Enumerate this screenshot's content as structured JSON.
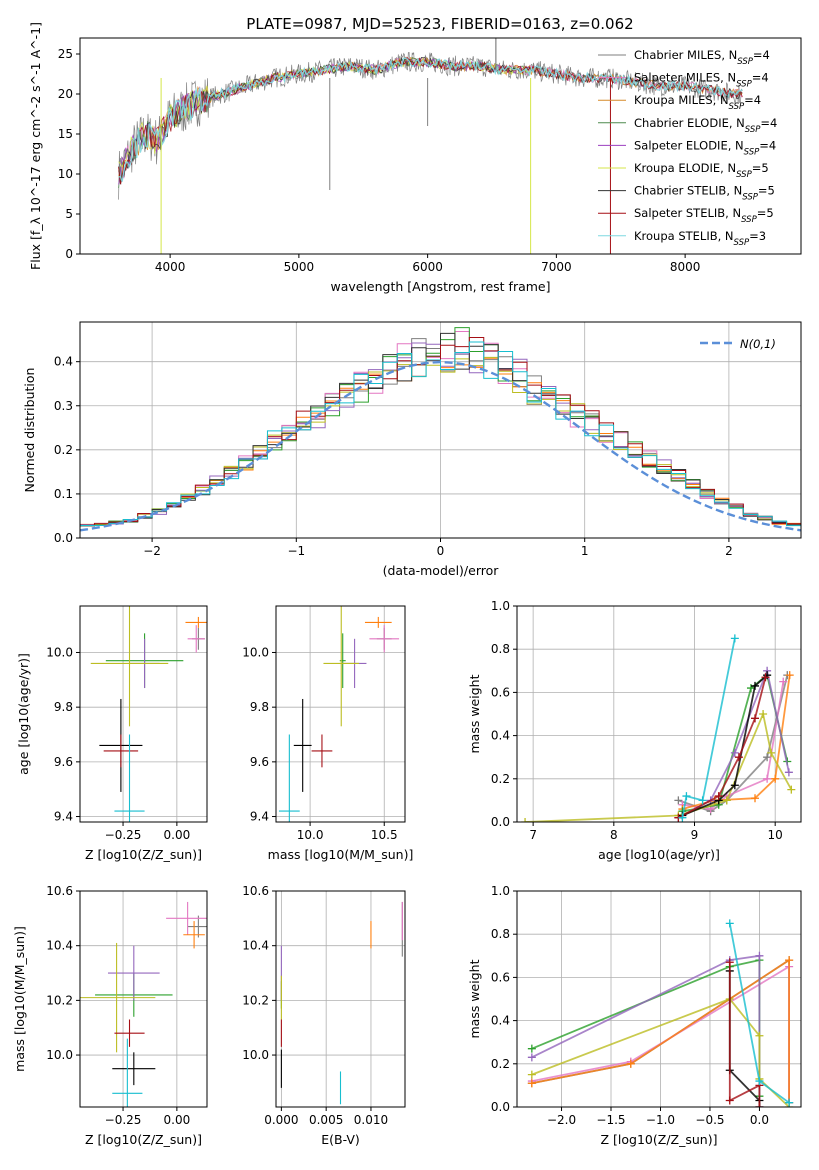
{
  "figure_title": "PLATE=0987, MJD=52523, FIBERID=0163, z=0.062",
  "colors": {
    "Chabrier MILES": "#7f7f7f",
    "Salpeter MILES": "#e377c2",
    "Kroupa MILES": "#ff7f0e",
    "Chabrier ELODIE": "#2ca02c",
    "Salpeter ELODIE": "#9467bd",
    "Kroupa ELODIE": "#bcbd22",
    "Chabrier STELIB": "#000000",
    "Salpeter STELIB": "#a50f15",
    "Kroupa STELIB": "#17becf",
    "normal_curve": "#5b8fd8"
  },
  "legend_spectrum": [
    {
      "label": "Chabrier MILES, N_SSP=4",
      "color": "#7f7f7f"
    },
    {
      "label": "Salpeter MILES, N_SSP=4",
      "color": "#e377c2"
    },
    {
      "label": "Kroupa MILES, N_SSP=4",
      "color": "#d68a2a"
    },
    {
      "label": "Chabrier ELODIE, N_SSP=4",
      "color": "#4e8a4e"
    },
    {
      "label": "Salpeter ELODIE, N_SSP=4",
      "color": "#9b3fbf"
    },
    {
      "label": "Kroupa ELODIE, N_SSP=5",
      "color": "#d4e64a"
    },
    {
      "label": "Chabrier STELIB, N_SSP=5",
      "color": "#333333"
    },
    {
      "label": "Salpeter STELIB, N_SSP=5",
      "color": "#a50f15"
    },
    {
      "label": "Kroupa STELIB, N_SSP=3",
      "color": "#7fd8e0"
    }
  ],
  "chart_data": [
    {
      "id": "spectrum",
      "type": "line",
      "xlabel": "wavelength [Angstrom, rest frame]",
      "ylabel": "Flux [f_λ 10^-17 erg cm^-2 s^-1 A^-1]",
      "xlim": [
        3300,
        8900
      ],
      "ylim": [
        0,
        27
      ],
      "xticks": [
        4000,
        5000,
        6000,
        7000,
        8000
      ],
      "yticks": [
        0,
        5,
        10,
        15,
        20,
        25
      ],
      "x": [
        3600,
        3700,
        3800,
        3900,
        4000,
        4100,
        4200,
        4400,
        4600,
        4800,
        5000,
        5200,
        5400,
        5600,
        5800,
        6000,
        6200,
        6400,
        6600,
        6800,
        7000,
        7200,
        7400,
        7600,
        7800,
        8000,
        8200,
        8400
      ],
      "series": [
        {
          "name": "data",
          "values": [
            10,
            13,
            15,
            14,
            17,
            18,
            19,
            20,
            21,
            22,
            22.5,
            23,
            23.5,
            23,
            24,
            24,
            23.5,
            23.5,
            23,
            23,
            22.5,
            22,
            22,
            21.5,
            21,
            21,
            20.5,
            20
          ]
        },
        {
          "name": "model",
          "values": [
            11,
            13.5,
            15.5,
            15,
            17.5,
            18.5,
            19.5,
            20.5,
            21.5,
            22,
            22.5,
            23,
            23.5,
            23.5,
            23.5,
            23.5,
            23.5,
            23,
            23,
            22.5,
            22.5,
            22,
            22,
            21.5,
            21,
            21,
            20.5,
            20
          ]
        }
      ]
    },
    {
      "id": "residual_hist",
      "type": "histogram",
      "xlabel": "(data-model)/error",
      "ylabel": "Normed distribution",
      "xlim": [
        -2.5,
        2.5
      ],
      "ylim": [
        0,
        0.49
      ],
      "xticks": [
        -2,
        -1,
        0,
        1,
        2
      ],
      "yticks": [
        0.0,
        0.1,
        0.2,
        0.3,
        0.4
      ],
      "legend": "N(0,1)",
      "bin_edges": [
        -2.5,
        -2.4,
        -2.3,
        -2.2,
        -2.1,
        -2.0,
        -1.9,
        -1.8,
        -1.7,
        -1.6,
        -1.5,
        -1.4,
        -1.3,
        -1.2,
        -1.1,
        -1.0,
        -0.9,
        -0.8,
        -0.7,
        -0.6,
        -0.5,
        -0.4,
        -0.3,
        -0.2,
        -0.1,
        0.0,
        0.1,
        0.2,
        0.3,
        0.4,
        0.5,
        0.6,
        0.7,
        0.8,
        0.9,
        1.0,
        1.1,
        1.2,
        1.3,
        1.4,
        1.5,
        1.6,
        1.7,
        1.8,
        1.9,
        2.0,
        2.1,
        2.2,
        2.3,
        2.4,
        2.5
      ],
      "density": [
        0.03,
        0.03,
        0.035,
        0.04,
        0.05,
        0.06,
        0.075,
        0.09,
        0.11,
        0.13,
        0.15,
        0.17,
        0.19,
        0.22,
        0.24,
        0.26,
        0.28,
        0.3,
        0.32,
        0.34,
        0.36,
        0.38,
        0.4,
        0.41,
        0.4,
        0.42,
        0.43,
        0.41,
        0.4,
        0.39,
        0.37,
        0.34,
        0.32,
        0.3,
        0.28,
        0.26,
        0.24,
        0.22,
        0.2,
        0.18,
        0.16,
        0.14,
        0.12,
        0.1,
        0.085,
        0.07,
        0.055,
        0.045,
        0.035,
        0.03
      ]
    },
    {
      "id": "age_vs_Z",
      "type": "errorbar",
      "xlabel": "Z [log10(Z/Z_sun)]",
      "ylabel": "age [log10(age/yr)]",
      "xlim": [
        -0.45,
        0.14
      ],
      "ylim": [
        9.38,
        10.17
      ],
      "xticks": [
        -0.25,
        0.0
      ],
      "yticks": [
        9.4,
        9.6,
        9.8,
        10.0
      ],
      "points": [
        {
          "model": "Chabrier MILES",
          "x": 0.1,
          "y": 10.05,
          "xerr": 0.03,
          "yerr": 0.04
        },
        {
          "model": "Salpeter MILES",
          "x": 0.09,
          "y": 10.05,
          "xerr": 0.04,
          "yerr": 0.05
        },
        {
          "model": "Kroupa MILES",
          "x": 0.1,
          "y": 10.11,
          "xerr": 0.06,
          "yerr": 0.02
        },
        {
          "model": "Chabrier ELODIE",
          "x": -0.15,
          "y": 9.97,
          "xerr": 0.18,
          "yerr": 0.1
        },
        {
          "model": "Salpeter ELODIE",
          "x": -0.15,
          "y": 9.96,
          "xerr": 0.07,
          "yerr": 0.09
        },
        {
          "model": "Kroupa ELODIE",
          "x": -0.22,
          "y": 9.96,
          "xerr": 0.18,
          "yerr": 0.23
        },
        {
          "model": "Chabrier STELIB",
          "x": -0.26,
          "y": 9.66,
          "xerr": 0.1,
          "yerr": 0.17
        },
        {
          "model": "Salpeter STELIB",
          "x": -0.26,
          "y": 9.64,
          "xerr": 0.08,
          "yerr": 0.06
        },
        {
          "model": "Kroupa STELIB",
          "x": -0.22,
          "y": 9.42,
          "xerr": 0.07,
          "yerr": 0.28
        }
      ]
    },
    {
      "id": "age_vs_mass",
      "type": "errorbar",
      "xlabel": "mass [log10(M/M_sun)]",
      "ylabel": "",
      "xlim": [
        9.77,
        10.64
      ],
      "ylim": [
        9.38,
        10.17
      ],
      "xticks": [
        10.0,
        10.5
      ],
      "yticks": [
        9.4,
        9.6,
        9.8,
        10.0
      ],
      "points": [
        {
          "model": "Chabrier MILES",
          "x": 10.5,
          "y": 10.05,
          "xerr": 0.05,
          "yerr": 0.04
        },
        {
          "model": "Salpeter MILES",
          "x": 10.5,
          "y": 10.05,
          "xerr": 0.1,
          "yerr": 0.05
        },
        {
          "model": "Kroupa MILES",
          "x": 10.46,
          "y": 10.11,
          "xerr": 0.09,
          "yerr": 0.02
        },
        {
          "model": "Chabrier ELODIE",
          "x": 10.22,
          "y": 9.97,
          "xerr": 0.02,
          "yerr": 0.1
        },
        {
          "model": "Salpeter ELODIE",
          "x": 10.3,
          "y": 9.96,
          "xerr": 0.08,
          "yerr": 0.09
        },
        {
          "model": "Kroupa ELODIE",
          "x": 10.21,
          "y": 9.96,
          "xerr": 0.12,
          "yerr": 0.23
        },
        {
          "model": "Chabrier STELIB",
          "x": 9.95,
          "y": 9.66,
          "xerr": 0.06,
          "yerr": 0.17
        },
        {
          "model": "Salpeter STELIB",
          "x": 10.08,
          "y": 9.64,
          "xerr": 0.07,
          "yerr": 0.06
        },
        {
          "model": "Kroupa STELIB",
          "x": 9.86,
          "y": 9.42,
          "xerr": 0.07,
          "yerr": 0.28
        }
      ]
    },
    {
      "id": "mass_weight_vs_age",
      "type": "line",
      "xlabel": "age [log10(age/yr)]",
      "ylabel": "mass weight",
      "xlim": [
        6.8,
        10.32
      ],
      "ylim": [
        0,
        1.0
      ],
      "xticks": [
        7,
        8,
        9,
        10
      ],
      "yticks": [
        0.0,
        0.2,
        0.4,
        0.6,
        0.8,
        1.0
      ],
      "series": [
        {
          "model": "Chabrier MILES",
          "x": [
            8.8,
            9.2,
            9.4,
            9.9,
            10.15
          ],
          "y": [
            0.1,
            0.05,
            0.1,
            0.3,
            0.68
          ]
        },
        {
          "model": "Salpeter MILES",
          "x": [
            8.85,
            9.2,
            9.4,
            9.9,
            10.1
          ],
          "y": [
            0.08,
            0.06,
            0.12,
            0.2,
            0.65
          ]
        },
        {
          "model": "Kroupa MILES",
          "x": [
            8.85,
            9.25,
            9.75,
            10.0,
            10.18
          ],
          "y": [
            0.06,
            0.1,
            0.11,
            0.2,
            0.68
          ]
        },
        {
          "model": "Chabrier ELODIE",
          "x": [
            8.85,
            9.3,
            9.7,
            9.9,
            10.15
          ],
          "y": [
            0.05,
            0.08,
            0.62,
            0.68,
            0.28
          ]
        },
        {
          "model": "Salpeter ELODIE",
          "x": [
            8.8,
            9.2,
            9.5,
            9.9,
            10.17
          ],
          "y": [
            0.02,
            0.1,
            0.32,
            0.7,
            0.23
          ]
        },
        {
          "model": "Kroupa ELODIE",
          "x": [
            6.9,
            8.8,
            9.4,
            9.85,
            9.95,
            10.2
          ],
          "y": [
            0.0,
            0.03,
            0.1,
            0.5,
            0.32,
            0.15
          ]
        },
        {
          "model": "Chabrier STELIB",
          "x": [
            8.85,
            9.3,
            9.5,
            9.75,
            9.9
          ],
          "y": [
            0.03,
            0.1,
            0.17,
            0.63,
            0.68
          ]
        },
        {
          "model": "Salpeter STELIB",
          "x": [
            8.8,
            9.3,
            9.55,
            9.75,
            9.88
          ],
          "y": [
            0.02,
            0.12,
            0.3,
            0.48,
            0.67
          ]
        },
        {
          "model": "Kroupa STELIB",
          "x": [
            8.85,
            8.9,
            9.1,
            9.5
          ],
          "y": [
            0.02,
            0.12,
            0.1,
            0.85
          ]
        }
      ]
    },
    {
      "id": "mass_vs_Z",
      "type": "errorbar",
      "xlabel": "Z [log10(Z/Z_sun)]",
      "ylabel": "mass [log10(M/M_sun)]",
      "xlim": [
        -0.45,
        0.14
      ],
      "ylim": [
        9.81,
        10.6
      ],
      "xticks": [
        -0.25,
        0.0
      ],
      "yticks": [
        10.0,
        10.2,
        10.4,
        10.6
      ],
      "points": [
        {
          "model": "Chabrier MILES",
          "x": 0.1,
          "y": 10.47,
          "xerr": 0.05,
          "yerr": 0.04
        },
        {
          "model": "Salpeter MILES",
          "x": 0.05,
          "y": 10.5,
          "xerr": 0.1,
          "yerr": 0.06
        },
        {
          "model": "Kroupa MILES",
          "x": 0.08,
          "y": 10.44,
          "xerr": 0.05,
          "yerr": 0.05
        },
        {
          "model": "Chabrier ELODIE",
          "x": -0.2,
          "y": 10.22,
          "xerr": 0.18,
          "yerr": 0.08
        },
        {
          "model": "Salpeter ELODIE",
          "x": -0.2,
          "y": 10.3,
          "xerr": 0.12,
          "yerr": 0.1
        },
        {
          "model": "Kroupa ELODIE",
          "x": -0.28,
          "y": 10.21,
          "xerr": 0.18,
          "yerr": 0.2
        },
        {
          "model": "Chabrier STELIB",
          "x": -0.2,
          "y": 9.95,
          "xerr": 0.1,
          "yerr": 0.06
        },
        {
          "model": "Salpeter STELIB",
          "x": -0.22,
          "y": 10.08,
          "xerr": 0.07,
          "yerr": 0.05
        },
        {
          "model": "Kroupa STELIB",
          "x": -0.23,
          "y": 9.86,
          "xerr": 0.07,
          "yerr": 0.2
        }
      ]
    },
    {
      "id": "mass_vs_EBV",
      "type": "errorbar",
      "xlabel": "E(B-V)",
      "ylabel": "",
      "xlim": [
        -0.0006,
        0.0138
      ],
      "ylim": [
        9.81,
        10.6
      ],
      "xticks": [
        0.0,
        0.005,
        0.01
      ],
      "yticks": [
        10.0,
        10.2,
        10.4,
        10.6
      ],
      "points": [
        {
          "model": "Chabrier MILES",
          "x": 0.0135,
          "y": 10.46,
          "yerr": 0.1
        },
        {
          "model": "Salpeter MILES",
          "x": 0.0135,
          "y": 10.49,
          "yerr": 0.07
        },
        {
          "model": "Kroupa MILES",
          "x": 0.01,
          "y": 10.44,
          "yerr": 0.05
        },
        {
          "model": "Chabrier ELODIE",
          "x": 0.0,
          "y": 10.22,
          "yerr": 0.05
        },
        {
          "model": "Salpeter ELODIE",
          "x": 0.0,
          "y": 10.3,
          "yerr": 0.1
        },
        {
          "model": "Kroupa ELODIE",
          "x": 0.0,
          "y": 10.21,
          "yerr": 0.08
        },
        {
          "model": "Chabrier STELIB",
          "x": 0.0,
          "y": 9.95,
          "yerr": 0.07
        },
        {
          "model": "Salpeter STELIB",
          "x": 0.0,
          "y": 10.08,
          "yerr": 0.05
        },
        {
          "model": "Kroupa STELIB",
          "x": 0.0066,
          "y": 9.88,
          "yerr": 0.06
        }
      ]
    },
    {
      "id": "mass_weight_vs_Z",
      "type": "line",
      "xlabel": "Z [log10(Z/Z_sun)]",
      "ylabel": "mass weight",
      "xlim": [
        -2.45,
        0.42
      ],
      "ylim": [
        0,
        1.0
      ],
      "xticks": [
        -2.0,
        -1.5,
        -1.0,
        -0.5,
        0.0
      ],
      "yticks": [
        0.0,
        0.2,
        0.4,
        0.6,
        0.8,
        1.0
      ],
      "series": [
        {
          "model": "Chabrier MILES",
          "x": [
            -2.3,
            -1.3,
            0.3,
            0.3
          ],
          "y": [
            0.11,
            0.2,
            0.68,
            0.02
          ]
        },
        {
          "model": "Salpeter MILES",
          "x": [
            -2.3,
            -1.3,
            0.3,
            0.3
          ],
          "y": [
            0.12,
            0.21,
            0.65,
            0.02
          ]
        },
        {
          "model": "Kroupa MILES",
          "x": [
            -2.3,
            -1.3,
            0.3,
            0.3
          ],
          "y": [
            0.11,
            0.2,
            0.68,
            0.02
          ]
        },
        {
          "model": "Chabrier ELODIE",
          "x": [
            -2.3,
            -0.3,
            0.0,
            0.0
          ],
          "y": [
            0.27,
            0.65,
            0.68,
            0.05
          ]
        },
        {
          "model": "Salpeter ELODIE",
          "x": [
            -2.3,
            -0.3,
            0.0,
            0.0
          ],
          "y": [
            0.23,
            0.68,
            0.7,
            0.0
          ]
        },
        {
          "model": "Kroupa ELODIE",
          "x": [
            -2.3,
            -0.3,
            0.0,
            0.0,
            0.3
          ],
          "y": [
            0.15,
            0.5,
            0.33,
            0.13,
            0.0
          ]
        },
        {
          "model": "Chabrier STELIB",
          "x": [
            -0.3,
            -0.3,
            0.0,
            0.0
          ],
          "y": [
            0.63,
            0.17,
            0.03,
            0.0
          ]
        },
        {
          "model": "Salpeter STELIB",
          "x": [
            -0.3,
            -0.3,
            0.0,
            0.0
          ],
          "y": [
            0.67,
            0.03,
            0.1,
            0.0
          ]
        },
        {
          "model": "Kroupa STELIB",
          "x": [
            -0.3,
            0.0,
            0.3
          ],
          "y": [
            0.85,
            0.12,
            0.02
          ]
        }
      ]
    }
  ]
}
